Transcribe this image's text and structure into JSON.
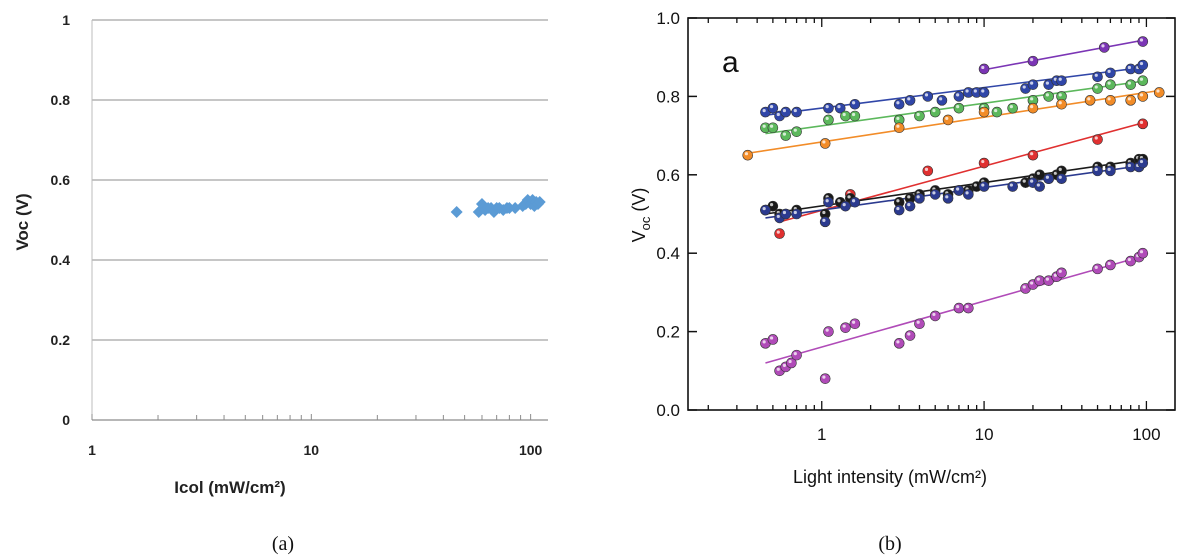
{
  "chart_data": [
    {
      "type": "scatter",
      "caption": "(a)",
      "xlabel": "Icol (mW/cm²)",
      "ylabel": "Voc (V)",
      "xscale": "log",
      "xlim": [
        1,
        120
      ],
      "ylim": [
        0,
        1
      ],
      "xticks": [
        1,
        10,
        100
      ],
      "xtick_labels": [
        "1",
        "10",
        "100"
      ],
      "yticks": [
        0,
        0.2,
        0.4,
        0.6,
        0.8,
        1
      ],
      "ytick_labels": [
        "0",
        "0.2",
        "0.4",
        "0.6",
        "0.8",
        "1"
      ],
      "grid": "horizontal",
      "marker": "diamond",
      "color": "#5b9bd5",
      "series": [
        {
          "x": [
            46,
            58,
            60,
            61,
            62,
            64,
            66,
            68,
            70,
            72,
            75,
            78,
            80,
            85,
            92,
            95,
            97,
            100,
            102,
            104,
            106,
            108,
            110
          ],
          "y": [
            0.52,
            0.52,
            0.54,
            0.53,
            0.525,
            0.53,
            0.53,
            0.52,
            0.53,
            0.53,
            0.525,
            0.53,
            0.53,
            0.53,
            0.535,
            0.54,
            0.55,
            0.54,
            0.55,
            0.535,
            0.545,
            0.54,
            0.545
          ]
        }
      ]
    },
    {
      "type": "scatter",
      "caption": "(b)",
      "panel_label": "a",
      "xlabel": "Light intensity (mW/cm²)",
      "ylabel_main": "V",
      "ylabel_sub": "oc",
      "ylabel_unit": " (V)",
      "xscale": "log",
      "xlim": [
        0.15,
        150
      ],
      "ylim": [
        0,
        1
      ],
      "xticks": [
        1,
        10,
        100
      ],
      "xtick_labels": [
        "1",
        "10",
        "100"
      ],
      "yticks": [
        0,
        0.2,
        0.4,
        0.6,
        0.8,
        1
      ],
      "ytick_labels": [
        "0.0",
        "0.2",
        "0.4",
        "0.6",
        "0.8",
        "1.0"
      ],
      "grid": "none",
      "marker": "circle",
      "series": [
        {
          "color": "#7b35b5",
          "x": [
            10,
            20,
            55,
            95
          ],
          "y": [
            0.87,
            0.89,
            0.925,
            0.94
          ],
          "fit": [
            [
              10,
              0.868
            ],
            [
              100,
              0.945
            ]
          ]
        },
        {
          "color": "#3046a8",
          "x": [
            0.45,
            0.5,
            0.55,
            0.6,
            0.7,
            1.1,
            1.3,
            1.6,
            3,
            3.5,
            4.5,
            5.5,
            7,
            8,
            9,
            10,
            18,
            20,
            25,
            28,
            30,
            50,
            60,
            80,
            90,
            95
          ],
          "y": [
            0.76,
            0.77,
            0.75,
            0.76,
            0.76,
            0.77,
            0.77,
            0.78,
            0.78,
            0.79,
            0.8,
            0.79,
            0.8,
            0.81,
            0.81,
            0.81,
            0.82,
            0.83,
            0.83,
            0.84,
            0.84,
            0.85,
            0.86,
            0.87,
            0.87,
            0.88
          ],
          "fit": [
            [
              0.45,
              0.752
            ],
            [
              100,
              0.875
            ]
          ]
        },
        {
          "color": "#5cb85c",
          "x": [
            0.45,
            0.5,
            0.6,
            0.7,
            1.1,
            1.4,
            1.6,
            3,
            4,
            5,
            7,
            10,
            12,
            15,
            20,
            25,
            30,
            50,
            60,
            80,
            95
          ],
          "y": [
            0.72,
            0.72,
            0.7,
            0.71,
            0.74,
            0.75,
            0.75,
            0.74,
            0.75,
            0.76,
            0.77,
            0.77,
            0.76,
            0.77,
            0.79,
            0.8,
            0.8,
            0.82,
            0.83,
            0.83,
            0.84
          ],
          "fit": [
            [
              0.45,
              0.705
            ],
            [
              100,
              0.84
            ]
          ]
        },
        {
          "color": "#f28c28",
          "x": [
            0.35,
            1.05,
            3,
            6,
            10,
            20,
            30,
            45,
            60,
            80,
            95,
            120
          ],
          "y": [
            0.65,
            0.68,
            0.72,
            0.74,
            0.76,
            0.77,
            0.78,
            0.79,
            0.79,
            0.79,
            0.8,
            0.81
          ],
          "fit": [
            [
              0.35,
              0.655
            ],
            [
              120,
              0.815
            ]
          ]
        },
        {
          "color": "#e03030",
          "x": [
            0.55,
            1.5,
            4.5,
            10,
            20,
            50,
            95
          ],
          "y": [
            0.45,
            0.55,
            0.61,
            0.63,
            0.65,
            0.69,
            0.73
          ],
          "fit": [
            [
              0.55,
              0.48
            ],
            [
              100,
              0.735
            ]
          ]
        },
        {
          "color": "#1a1a1a",
          "x": [
            0.45,
            0.5,
            0.55,
            0.6,
            0.7,
            1.05,
            1.1,
            1.3,
            1.5,
            3,
            3.5,
            4,
            5,
            6,
            7,
            8,
            9,
            10,
            18,
            20,
            22,
            25,
            28,
            30,
            50,
            60,
            80,
            90,
            95
          ],
          "y": [
            0.51,
            0.52,
            0.5,
            0.5,
            0.51,
            0.5,
            0.54,
            0.53,
            0.54,
            0.53,
            0.54,
            0.55,
            0.56,
            0.55,
            0.56,
            0.56,
            0.57,
            0.58,
            0.58,
            0.59,
            0.6,
            0.59,
            0.6,
            0.61,
            0.62,
            0.62,
            0.63,
            0.64,
            0.64
          ],
          "fit": [
            [
              0.45,
              0.5
            ],
            [
              100,
              0.64
            ]
          ]
        },
        {
          "color": "#2b3a8f",
          "x": [
            0.45,
            0.55,
            0.6,
            0.7,
            1.05,
            1.1,
            1.4,
            1.6,
            3,
            3.5,
            4,
            5,
            6,
            7,
            8,
            10,
            15,
            20,
            22,
            25,
            30,
            50,
            60,
            80,
            90,
            95
          ],
          "y": [
            0.51,
            0.49,
            0.5,
            0.5,
            0.48,
            0.53,
            0.52,
            0.53,
            0.51,
            0.52,
            0.54,
            0.55,
            0.54,
            0.56,
            0.55,
            0.57,
            0.57,
            0.58,
            0.57,
            0.59,
            0.59,
            0.61,
            0.61,
            0.62,
            0.62,
            0.63
          ],
          "fit": [
            [
              0.45,
              0.49
            ],
            [
              100,
              0.625
            ]
          ]
        },
        {
          "color": "#b04bb8",
          "x": [
            0.45,
            0.5,
            0.55,
            0.6,
            0.65,
            0.7,
            1.05,
            1.1,
            1.4,
            1.6,
            3,
            3.5,
            4,
            5,
            7,
            8,
            18,
            20,
            22,
            25,
            28,
            30,
            50,
            60,
            80,
            90,
            95
          ],
          "y": [
            0.17,
            0.18,
            0.1,
            0.11,
            0.12,
            0.14,
            0.08,
            0.2,
            0.21,
            0.22,
            0.17,
            0.19,
            0.22,
            0.24,
            0.26,
            0.26,
            0.31,
            0.32,
            0.33,
            0.33,
            0.34,
            0.35,
            0.36,
            0.37,
            0.38,
            0.39,
            0.4
          ],
          "fit": [
            [
              0.45,
              0.12
            ],
            [
              100,
              0.395
            ]
          ]
        }
      ]
    }
  ]
}
